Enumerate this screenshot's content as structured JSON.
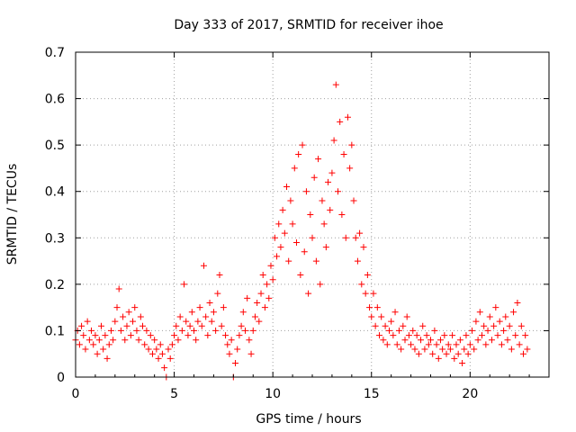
{
  "chart_data": {
    "type": "scatter",
    "title": "Day 333 of 2017, SRMTID for receiver ihoe",
    "xlabel": "GPS time / hours",
    "ylabel": "SRMTID / TECUs",
    "xlim": [
      0,
      24
    ],
    "ylim": [
      0,
      0.7
    ],
    "xticks": [
      0,
      5,
      10,
      15,
      20
    ],
    "xtick_labels": [
      "0",
      "5",
      "10",
      "15",
      "20"
    ],
    "yticks": [
      0,
      0.1,
      0.2,
      0.3,
      0.4,
      0.5,
      0.6,
      0.7
    ],
    "ytick_labels": [
      "0",
      "0.1",
      "0.2",
      "0.3",
      "0.4",
      "0.5",
      "0.6",
      "0.7"
    ],
    "grid": true,
    "marker": "+",
    "color": "#ff0000",
    "series": [
      {
        "name": "SRMTID",
        "points": [
          [
            0.0,
            0.08
          ],
          [
            0.1,
            0.1
          ],
          [
            0.2,
            0.07
          ],
          [
            0.3,
            0.11
          ],
          [
            0.4,
            0.09
          ],
          [
            0.5,
            0.06
          ],
          [
            0.6,
            0.12
          ],
          [
            0.7,
            0.08
          ],
          [
            0.8,
            0.1
          ],
          [
            0.9,
            0.07
          ],
          [
            1.0,
            0.09
          ],
          [
            1.1,
            0.05
          ],
          [
            1.2,
            0.08
          ],
          [
            1.3,
            0.11
          ],
          [
            1.4,
            0.06
          ],
          [
            1.5,
            0.09
          ],
          [
            1.6,
            0.04
          ],
          [
            1.7,
            0.07
          ],
          [
            1.8,
            0.1
          ],
          [
            1.9,
            0.08
          ],
          [
            2.0,
            0.12
          ],
          [
            2.1,
            0.15
          ],
          [
            2.2,
            0.19
          ],
          [
            2.3,
            0.1
          ],
          [
            2.4,
            0.13
          ],
          [
            2.5,
            0.08
          ],
          [
            2.6,
            0.11
          ],
          [
            2.7,
            0.14
          ],
          [
            2.8,
            0.09
          ],
          [
            2.9,
            0.12
          ],
          [
            3.0,
            0.15
          ],
          [
            3.1,
            0.1
          ],
          [
            3.2,
            0.08
          ],
          [
            3.3,
            0.13
          ],
          [
            3.4,
            0.11
          ],
          [
            3.5,
            0.07
          ],
          [
            3.6,
            0.1
          ],
          [
            3.7,
            0.06
          ],
          [
            3.8,
            0.09
          ],
          [
            3.9,
            0.05
          ],
          [
            4.0,
            0.08
          ],
          [
            4.1,
            0.06
          ],
          [
            4.2,
            0.04
          ],
          [
            4.3,
            0.07
          ],
          [
            4.4,
            0.05
          ],
          [
            4.5,
            0.02
          ],
          [
            4.6,
            0.0
          ],
          [
            4.7,
            0.06
          ],
          [
            4.8,
            0.04
          ],
          [
            4.9,
            0.07
          ],
          [
            5.0,
            0.09
          ],
          [
            5.1,
            0.11
          ],
          [
            5.2,
            0.08
          ],
          [
            5.3,
            0.13
          ],
          [
            5.4,
            0.1
          ],
          [
            5.5,
            0.2
          ],
          [
            5.6,
            0.12
          ],
          [
            5.7,
            0.09
          ],
          [
            5.8,
            0.11
          ],
          [
            5.9,
            0.14
          ],
          [
            6.0,
            0.1
          ],
          [
            6.1,
            0.08
          ],
          [
            6.2,
            0.12
          ],
          [
            6.3,
            0.15
          ],
          [
            6.4,
            0.11
          ],
          [
            6.5,
            0.24
          ],
          [
            6.6,
            0.13
          ],
          [
            6.7,
            0.09
          ],
          [
            6.8,
            0.16
          ],
          [
            6.9,
            0.12
          ],
          [
            7.0,
            0.14
          ],
          [
            7.1,
            0.1
          ],
          [
            7.2,
            0.18
          ],
          [
            7.3,
            0.22
          ],
          [
            7.4,
            0.11
          ],
          [
            7.5,
            0.15
          ],
          [
            7.6,
            0.09
          ],
          [
            7.7,
            0.07
          ],
          [
            7.8,
            0.05
          ],
          [
            7.9,
            0.08
          ],
          [
            8.0,
            0.0
          ],
          [
            8.1,
            0.03
          ],
          [
            8.2,
            0.06
          ],
          [
            8.3,
            0.09
          ],
          [
            8.4,
            0.11
          ],
          [
            8.5,
            0.14
          ],
          [
            8.6,
            0.1
          ],
          [
            8.7,
            0.17
          ],
          [
            8.8,
            0.08
          ],
          [
            8.9,
            0.05
          ],
          [
            9.0,
            0.1
          ],
          [
            9.1,
            0.13
          ],
          [
            9.2,
            0.16
          ],
          [
            9.3,
            0.12
          ],
          [
            9.4,
            0.18
          ],
          [
            9.5,
            0.22
          ],
          [
            9.6,
            0.15
          ],
          [
            9.7,
            0.2
          ],
          [
            9.8,
            0.17
          ],
          [
            9.9,
            0.24
          ],
          [
            10.0,
            0.21
          ],
          [
            10.1,
            0.3
          ],
          [
            10.2,
            0.26
          ],
          [
            10.3,
            0.33
          ],
          [
            10.4,
            0.28
          ],
          [
            10.5,
            0.36
          ],
          [
            10.6,
            0.31
          ],
          [
            10.7,
            0.41
          ],
          [
            10.8,
            0.25
          ],
          [
            10.9,
            0.38
          ],
          [
            11.0,
            0.33
          ],
          [
            11.1,
            0.45
          ],
          [
            11.2,
            0.29
          ],
          [
            11.3,
            0.48
          ],
          [
            11.4,
            0.22
          ],
          [
            11.5,
            0.5
          ],
          [
            11.6,
            0.27
          ],
          [
            11.7,
            0.4
          ],
          [
            11.8,
            0.18
          ],
          [
            11.9,
            0.35
          ],
          [
            12.0,
            0.3
          ],
          [
            12.1,
            0.43
          ],
          [
            12.2,
            0.25
          ],
          [
            12.3,
            0.47
          ],
          [
            12.4,
            0.2
          ],
          [
            12.5,
            0.38
          ],
          [
            12.6,
            0.33
          ],
          [
            12.7,
            0.28
          ],
          [
            12.8,
            0.42
          ],
          [
            12.9,
            0.36
          ],
          [
            13.0,
            0.44
          ],
          [
            13.1,
            0.51
          ],
          [
            13.2,
            0.63
          ],
          [
            13.3,
            0.4
          ],
          [
            13.4,
            0.55
          ],
          [
            13.5,
            0.35
          ],
          [
            13.6,
            0.48
          ],
          [
            13.7,
            0.3
          ],
          [
            13.8,
            0.56
          ],
          [
            13.9,
            0.45
          ],
          [
            14.0,
            0.5
          ],
          [
            14.1,
            0.38
          ],
          [
            14.2,
            0.3
          ],
          [
            14.3,
            0.25
          ],
          [
            14.4,
            0.31
          ],
          [
            14.5,
            0.2
          ],
          [
            14.6,
            0.28
          ],
          [
            14.7,
            0.18
          ],
          [
            14.8,
            0.22
          ],
          [
            14.9,
            0.15
          ],
          [
            15.0,
            0.13
          ],
          [
            15.1,
            0.18
          ],
          [
            15.2,
            0.11
          ],
          [
            15.3,
            0.15
          ],
          [
            15.4,
            0.09
          ],
          [
            15.5,
            0.13
          ],
          [
            15.6,
            0.08
          ],
          [
            15.7,
            0.11
          ],
          [
            15.8,
            0.07
          ],
          [
            15.9,
            0.1
          ],
          [
            16.0,
            0.12
          ],
          [
            16.1,
            0.09
          ],
          [
            16.2,
            0.14
          ],
          [
            16.3,
            0.07
          ],
          [
            16.4,
            0.1
          ],
          [
            16.5,
            0.06
          ],
          [
            16.6,
            0.11
          ],
          [
            16.7,
            0.08
          ],
          [
            16.8,
            0.13
          ],
          [
            16.9,
            0.09
          ],
          [
            17.0,
            0.07
          ],
          [
            17.1,
            0.1
          ],
          [
            17.2,
            0.06
          ],
          [
            17.3,
            0.09
          ],
          [
            17.4,
            0.05
          ],
          [
            17.5,
            0.08
          ],
          [
            17.6,
            0.11
          ],
          [
            17.7,
            0.06
          ],
          [
            17.8,
            0.09
          ],
          [
            17.9,
            0.07
          ],
          [
            18.0,
            0.08
          ],
          [
            18.1,
            0.05
          ],
          [
            18.2,
            0.1
          ],
          [
            18.3,
            0.07
          ],
          [
            18.4,
            0.04
          ],
          [
            18.5,
            0.08
          ],
          [
            18.6,
            0.06
          ],
          [
            18.7,
            0.09
          ],
          [
            18.8,
            0.05
          ],
          [
            18.9,
            0.07
          ],
          [
            19.0,
            0.06
          ],
          [
            19.1,
            0.09
          ],
          [
            19.2,
            0.04
          ],
          [
            19.3,
            0.07
          ],
          [
            19.4,
            0.05
          ],
          [
            19.5,
            0.08
          ],
          [
            19.6,
            0.03
          ],
          [
            19.7,
            0.06
          ],
          [
            19.8,
            0.09
          ],
          [
            19.9,
            0.05
          ],
          [
            20.0,
            0.07
          ],
          [
            20.1,
            0.1
          ],
          [
            20.2,
            0.06
          ],
          [
            20.3,
            0.12
          ],
          [
            20.4,
            0.08
          ],
          [
            20.5,
            0.14
          ],
          [
            20.6,
            0.09
          ],
          [
            20.7,
            0.11
          ],
          [
            20.8,
            0.07
          ],
          [
            20.9,
            0.1
          ],
          [
            21.0,
            0.13
          ],
          [
            21.1,
            0.08
          ],
          [
            21.2,
            0.11
          ],
          [
            21.3,
            0.15
          ],
          [
            21.4,
            0.09
          ],
          [
            21.5,
            0.12
          ],
          [
            21.6,
            0.07
          ],
          [
            21.7,
            0.1
          ],
          [
            21.8,
            0.13
          ],
          [
            21.9,
            0.08
          ],
          [
            22.0,
            0.11
          ],
          [
            22.1,
            0.06
          ],
          [
            22.2,
            0.14
          ],
          [
            22.3,
            0.09
          ],
          [
            22.4,
            0.16
          ],
          [
            22.5,
            0.07
          ],
          [
            22.6,
            0.11
          ],
          [
            22.7,
            0.05
          ],
          [
            22.8,
            0.09
          ],
          [
            22.9,
            0.06
          ]
        ]
      }
    ]
  }
}
